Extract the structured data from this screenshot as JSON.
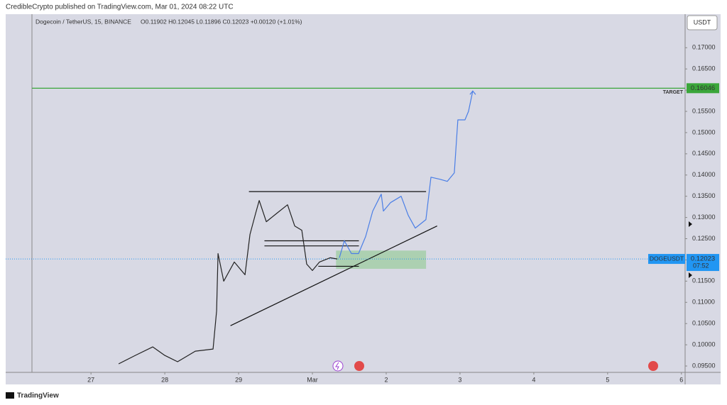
{
  "header": {
    "byline": "CredibleCrypto published on TradingView.com, Mar 01, 2024 08:22 UTC",
    "footer": "TradingView"
  },
  "chart_data": {
    "type": "line",
    "symbol": "Dogecoin / TetherUS, 15, BINANCE",
    "ohlc": "O0.11902 H0.12045 L0.11896 C0.12023 +0.00120 (+1.01%)",
    "currency": "USDT",
    "xlim": [
      26.2,
      35.05
    ],
    "xticks": [
      27,
      28,
      29,
      {
        "value": 30,
        "label": "Mar"
      },
      {
        "value": 31,
        "label": "2"
      },
      {
        "value": 32,
        "label": "3"
      },
      {
        "value": 33,
        "label": "4"
      },
      {
        "value": 34,
        "label": "5"
      },
      {
        "value": 35,
        "label": "6"
      }
    ],
    "ylim": [
      0.0935,
      0.1779
    ],
    "yticks": [
      {
        "value": 0.095,
        "label": "0.09500"
      },
      {
        "value": 0.1,
        "label": "0.10000"
      },
      {
        "value": 0.105,
        "label": "0.10500"
      },
      {
        "value": 0.11,
        "label": "0.11000"
      },
      {
        "value": 0.115,
        "label": "0.11500"
      },
      {
        "value": 0.12,
        "label": "0.12000"
      },
      {
        "value": 0.125,
        "label": "0.12500"
      },
      {
        "value": 0.13,
        "label": "0.13000"
      },
      {
        "value": 0.135,
        "label": "0.13500"
      },
      {
        "value": 0.14,
        "label": "0.14000"
      },
      {
        "value": 0.145,
        "label": "0.14500"
      },
      {
        "value": 0.15,
        "label": "0.15000"
      },
      {
        "value": 0.155,
        "label": "0.15500"
      },
      {
        "value": 0.16,
        "label": "0.16000"
      },
      {
        "value": 0.165,
        "label": "0.16500"
      },
      {
        "value": 0.17,
        "label": "0.17000"
      }
    ],
    "series": [
      {
        "name": "DOGEUSDT",
        "color": "#222222",
        "x": [
          27.375,
          27.6,
          27.837,
          28.0,
          28.173,
          28.413,
          28.654,
          28.702,
          28.721,
          28.798,
          28.942,
          29.087,
          29.154,
          29.231,
          29.279,
          29.375,
          29.519,
          29.663,
          29.76,
          29.856,
          29.923,
          30.0,
          30.096,
          30.24,
          30.337
        ],
        "values": [
          0.0955,
          0.0975,
          0.0995,
          0.0975,
          0.096,
          0.0985,
          0.099,
          0.108,
          0.1215,
          0.115,
          0.1195,
          0.1165,
          0.126,
          0.131,
          0.134,
          0.129,
          0.131,
          0.133,
          0.128,
          0.127,
          0.119,
          0.1175,
          0.1195,
          0.1205,
          0.12023
        ]
      },
      {
        "color": "#4a7ee6",
        "x": [
          30.365,
          30.433,
          30.529,
          30.625,
          30.721,
          30.817,
          30.933,
          30.962,
          31.058,
          31.202,
          31.298,
          31.394,
          31.538,
          31.606,
          31.731,
          31.827,
          31.923,
          31.971,
          32.067,
          32.115,
          32.173
        ],
        "values": [
          0.1205,
          0.1245,
          0.1215,
          0.1215,
          0.1255,
          0.1315,
          0.1355,
          0.1315,
          0.1335,
          0.135,
          0.1305,
          0.1275,
          0.1295,
          0.1395,
          0.139,
          0.1385,
          0.1405,
          0.153,
          0.153,
          0.155,
          0.1598
        ]
      }
    ],
    "target": {
      "label": "TARGET",
      "value": 0.16046,
      "color": "#3aa63a"
    },
    "last_price": {
      "value": 0.12023,
      "countdown": "07:52",
      "color": "#2196f3"
    },
    "levels": [
      {
        "x": [
          29.14,
          31.54
        ],
        "values": [
          0.1361,
          0.1361
        ]
      },
      {
        "x": [
          29.35,
          30.63
        ],
        "values": [
          0.1245,
          0.1245
        ]
      },
      {
        "x": [
          29.35,
          30.63
        ],
        "values": [
          0.1233,
          0.1233
        ]
      },
      {
        "x": [
          30.08,
          30.63
        ],
        "values": [
          0.1185,
          0.1185
        ]
      },
      {
        "x": [
          28.89,
          31.69
        ],
        "values": [
          0.1045,
          0.128
        ]
      }
    ],
    "zone": {
      "x": [
        30.32,
        31.54
      ],
      "values": [
        0.1179,
        0.1222
      ],
      "color": "#8fc98f"
    }
  }
}
